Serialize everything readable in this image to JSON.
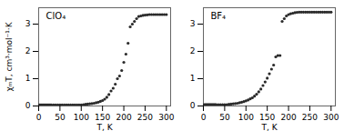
{
  "chart_data": [
    {
      "type": "scatter",
      "title": "ClO₄",
      "xlabel": "T, K",
      "ylabel": "χₘT, cm³·mol⁻¹·K",
      "x": [
        2,
        4,
        6,
        8,
        10,
        12,
        14,
        16,
        18,
        20,
        22,
        24,
        26,
        28,
        30,
        35,
        40,
        45,
        50,
        55,
        60,
        65,
        70,
        75,
        80,
        85,
        90,
        95,
        100,
        105,
        110,
        115,
        120,
        125,
        130,
        135,
        140,
        145,
        150,
        155,
        160,
        165,
        170,
        175,
        180,
        185,
        190,
        195,
        200,
        205,
        210,
        215,
        220,
        225,
        230,
        235,
        240,
        245,
        250,
        255,
        260,
        265,
        270,
        275,
        280,
        285,
        290,
        295,
        300
      ],
      "values": [
        0.04,
        0.04,
        0.04,
        0.04,
        0.04,
        0.04,
        0.04,
        0.04,
        0.04,
        0.04,
        0.04,
        0.04,
        0.04,
        0.04,
        0.04,
        0.04,
        0.04,
        0.04,
        0.04,
        0.04,
        0.04,
        0.04,
        0.04,
        0.04,
        0.04,
        0.04,
        0.04,
        0.04,
        0.04,
        0.05,
        0.06,
        0.07,
        0.08,
        0.09,
        0.1,
        0.12,
        0.14,
        0.17,
        0.2,
        0.25,
        0.32,
        0.42,
        0.55,
        0.65,
        0.8,
        1.0,
        1.1,
        1.3,
        1.6,
        1.9,
        2.3,
        2.9,
        3.0,
        3.1,
        3.2,
        3.28,
        3.3,
        3.32,
        3.33,
        3.34,
        3.35,
        3.35,
        3.35,
        3.35,
        3.35,
        3.35,
        3.35,
        3.35,
        3.35
      ],
      "color": "#2a2a2a",
      "marker": "circle",
      "xlim": [
        0,
        310
      ],
      "xticks": [
        0,
        50,
        100,
        150,
        200,
        250,
        300
      ],
      "ylim": [
        0,
        3.6
      ],
      "yticks": [
        0,
        1,
        2,
        3
      ]
    },
    {
      "type": "scatter",
      "title": "BF₄",
      "xlabel": "T, K",
      "x": [
        2,
        4,
        6,
        8,
        10,
        12,
        14,
        16,
        18,
        20,
        22,
        24,
        26,
        28,
        30,
        35,
        40,
        45,
        50,
        55,
        60,
        65,
        70,
        75,
        80,
        85,
        90,
        95,
        100,
        105,
        110,
        115,
        120,
        125,
        130,
        135,
        140,
        145,
        150,
        155,
        160,
        165,
        170,
        175,
        180,
        185,
        190,
        195,
        200,
        205,
        210,
        215,
        220,
        225,
        230,
        235,
        240,
        245,
        250,
        255,
        260,
        265,
        270,
        275,
        280,
        285,
        290,
        295,
        300
      ],
      "values": [
        0.05,
        0.05,
        0.05,
        0.05,
        0.05,
        0.05,
        0.05,
        0.05,
        0.05,
        0.05,
        0.05,
        0.05,
        0.05,
        0.05,
        0.05,
        0.05,
        0.05,
        0.05,
        0.05,
        0.05,
        0.06,
        0.07,
        0.08,
        0.09,
        0.1,
        0.12,
        0.14,
        0.16,
        0.19,
        0.22,
        0.26,
        0.3,
        0.36,
        0.43,
        0.52,
        0.62,
        0.75,
        0.88,
        1.02,
        1.18,
        1.35,
        1.5,
        1.8,
        1.85,
        1.85,
        3.1,
        3.2,
        3.3,
        3.35,
        3.38,
        3.4,
        3.42,
        3.43,
        3.44,
        3.44,
        3.44,
        3.44,
        3.44,
        3.44,
        3.44,
        3.44,
        3.44,
        3.44,
        3.44,
        3.44,
        3.44,
        3.44,
        3.44,
        3.44
      ],
      "color": "#2a2a2a",
      "marker": "circle",
      "xlim": [
        0,
        310
      ],
      "xticks": [
        0,
        50,
        100,
        150,
        200,
        250,
        300
      ],
      "ylim": [
        0,
        3.6
      ],
      "yticks": [
        0,
        1,
        2,
        3
      ]
    }
  ]
}
